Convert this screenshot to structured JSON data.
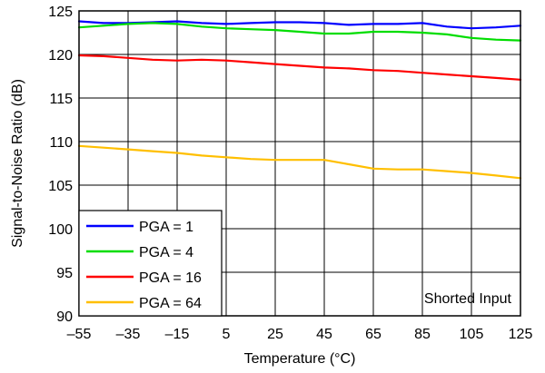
{
  "chart_data": {
    "type": "line",
    "xlabel": "Temperature (°C)",
    "ylabel": "Signal-to-Noise Ratio (dB)",
    "xlim": [
      -55,
      125
    ],
    "ylim": [
      90,
      125
    ],
    "x_ticks": [
      "–55",
      "–35",
      "–15",
      "5",
      "25",
      "45",
      "65",
      "85",
      "105",
      "125"
    ],
    "x_tick_values": [
      -55,
      -35,
      -15,
      5,
      25,
      45,
      65,
      85,
      105,
      125
    ],
    "y_ticks": [
      "90",
      "95",
      "100",
      "105",
      "110",
      "115",
      "120",
      "125"
    ],
    "y_tick_values": [
      90,
      95,
      100,
      105,
      110,
      115,
      120,
      125
    ],
    "grid": true,
    "legend_position": "bottom-left",
    "annotation": "Shorted Input",
    "series": [
      {
        "name": "PGA = 1",
        "color": "#0000ff",
        "x": [
          -55,
          -45,
          -35,
          -25,
          -15,
          -5,
          5,
          15,
          25,
          35,
          45,
          55,
          65,
          75,
          85,
          95,
          105,
          115,
          125
        ],
        "y": [
          123.8,
          123.6,
          123.6,
          123.7,
          123.8,
          123.6,
          123.5,
          123.6,
          123.7,
          123.7,
          123.6,
          123.4,
          123.5,
          123.5,
          123.6,
          123.2,
          123.0,
          123.1,
          123.3
        ]
      },
      {
        "name": "PGA = 4",
        "color": "#00dd00",
        "x": [
          -55,
          -45,
          -35,
          -25,
          -15,
          -5,
          5,
          15,
          25,
          35,
          45,
          55,
          65,
          75,
          85,
          95,
          105,
          115,
          125
        ],
        "y": [
          123.1,
          123.3,
          123.5,
          123.6,
          123.5,
          123.2,
          123.0,
          122.9,
          122.8,
          122.6,
          122.4,
          122.4,
          122.6,
          122.6,
          122.5,
          122.3,
          121.9,
          121.7,
          121.6
        ]
      },
      {
        "name": "PGA = 16",
        "color": "#ff0000",
        "x": [
          -55,
          -45,
          -35,
          -25,
          -15,
          -5,
          5,
          15,
          25,
          35,
          45,
          55,
          65,
          75,
          85,
          95,
          105,
          115,
          125
        ],
        "y": [
          119.9,
          119.8,
          119.6,
          119.4,
          119.3,
          119.4,
          119.3,
          119.1,
          118.9,
          118.7,
          118.5,
          118.4,
          118.2,
          118.1,
          117.9,
          117.7,
          117.5,
          117.3,
          117.1
        ]
      },
      {
        "name": "PGA = 64",
        "color": "#ffbf00",
        "x": [
          -55,
          -45,
          -35,
          -25,
          -15,
          -5,
          5,
          15,
          25,
          35,
          45,
          55,
          65,
          75,
          85,
          95,
          105,
          115,
          125
        ],
        "y": [
          109.5,
          109.3,
          109.1,
          108.9,
          108.7,
          108.4,
          108.2,
          108.0,
          107.9,
          107.9,
          107.9,
          107.4,
          106.9,
          106.8,
          106.8,
          106.6,
          106.4,
          106.1,
          105.8
        ]
      }
    ]
  }
}
